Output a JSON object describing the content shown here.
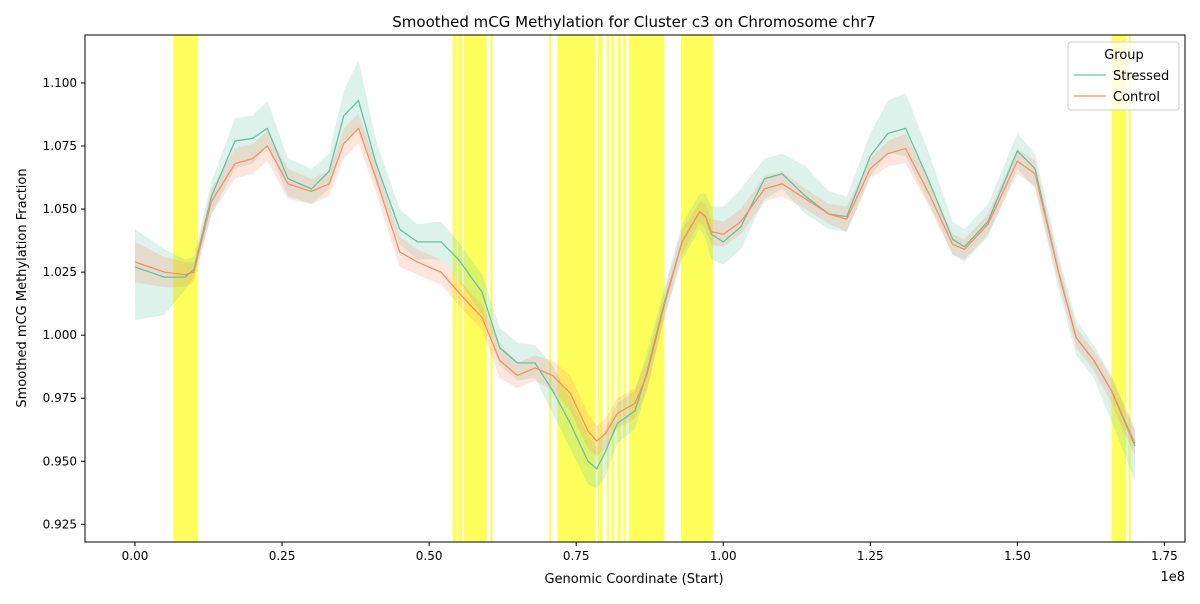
{
  "chart_data": {
    "type": "line",
    "title": "Smoothed mCG Methylation for Cluster c3 on Chromosome chr7",
    "xlabel": "Genomic Coordinate (Start)",
    "ylabel": "Smoothed mCG Methylation Fraction",
    "x_offset_label": "1e8",
    "xlim": [
      -0.085,
      1.785
    ],
    "ylim": [
      0.918,
      1.119
    ],
    "x_ticks": [
      0.0,
      0.25,
      0.5,
      0.75,
      1.0,
      1.25,
      1.5,
      1.75
    ],
    "x_tick_labels": [
      "0.00",
      "0.25",
      "0.50",
      "0.75",
      "1.00",
      "1.25",
      "1.50",
      "1.75"
    ],
    "y_ticks": [
      0.925,
      0.95,
      0.975,
      1.0,
      1.025,
      1.05,
      1.075,
      1.1
    ],
    "y_tick_labels": [
      "0.925",
      "0.950",
      "0.975",
      "1.000",
      "1.025",
      "1.050",
      "1.075",
      "1.100"
    ],
    "grid": false,
    "legend": {
      "title": "Group",
      "placement": "top-right"
    },
    "highlight_color": "#ffff33",
    "highlight_regions": [
      [
        0.065,
        0.107
      ],
      [
        0.54,
        0.547
      ],
      [
        0.549,
        0.556
      ],
      [
        0.559,
        0.598
      ],
      [
        0.604,
        0.608
      ],
      [
        0.704,
        0.708
      ],
      [
        0.718,
        0.783
      ],
      [
        0.787,
        0.795
      ],
      [
        0.802,
        0.806
      ],
      [
        0.81,
        0.815
      ],
      [
        0.82,
        0.826
      ],
      [
        0.83,
        0.835
      ],
      [
        0.84,
        0.9
      ],
      [
        0.928,
        0.983
      ],
      [
        1.66,
        1.685
      ],
      [
        1.689,
        1.693
      ]
    ],
    "x": [
      0.0,
      0.05,
      0.085,
      0.1,
      0.13,
      0.17,
      0.2,
      0.225,
      0.26,
      0.3,
      0.33,
      0.355,
      0.38,
      0.41,
      0.45,
      0.48,
      0.52,
      0.55,
      0.59,
      0.62,
      0.65,
      0.68,
      0.71,
      0.74,
      0.77,
      0.785,
      0.8,
      0.82,
      0.85,
      0.87,
      0.9,
      0.93,
      0.96,
      0.97,
      0.98,
      1.0,
      1.03,
      1.07,
      1.1,
      1.14,
      1.18,
      1.21,
      1.25,
      1.28,
      1.31,
      1.35,
      1.39,
      1.41,
      1.45,
      1.5,
      1.53,
      1.57,
      1.6,
      1.63,
      1.66,
      1.7
    ],
    "series": [
      {
        "name": "Stressed",
        "color": "#66c2a5",
        "values": [
          1.027,
          1.023,
          1.023,
          1.026,
          1.055,
          1.077,
          1.078,
          1.082,
          1.062,
          1.058,
          1.065,
          1.087,
          1.093,
          1.068,
          1.042,
          1.037,
          1.037,
          1.03,
          1.017,
          0.995,
          0.989,
          0.989,
          0.978,
          0.965,
          0.95,
          0.947,
          0.954,
          0.965,
          0.97,
          0.985,
          1.013,
          1.037,
          1.049,
          1.047,
          1.04,
          1.037,
          1.043,
          1.062,
          1.064,
          1.055,
          1.048,
          1.047,
          1.071,
          1.08,
          1.082,
          1.061,
          1.038,
          1.035,
          1.045,
          1.073,
          1.066,
          1.025,
          0.999,
          0.99,
          0.978,
          0.956
        ],
        "lower": [
          1.006,
          1.008,
          1.018,
          1.023,
          1.048,
          1.066,
          1.068,
          1.075,
          1.055,
          1.052,
          1.058,
          1.077,
          1.082,
          1.06,
          1.036,
          1.03,
          1.03,
          1.022,
          1.008,
          0.988,
          0.982,
          0.983,
          0.969,
          0.955,
          0.941,
          0.939,
          0.944,
          0.957,
          0.963,
          0.978,
          1.007,
          1.03,
          1.042,
          1.038,
          1.03,
          1.028,
          1.034,
          1.054,
          1.058,
          1.048,
          1.042,
          1.041,
          1.063,
          1.072,
          1.071,
          1.052,
          1.032,
          1.029,
          1.039,
          1.066,
          1.058,
          1.018,
          0.992,
          0.983,
          0.966,
          0.942
        ],
        "upper": [
          1.042,
          1.034,
          1.03,
          1.031,
          1.061,
          1.086,
          1.087,
          1.093,
          1.07,
          1.066,
          1.072,
          1.097,
          1.109,
          1.077,
          1.05,
          1.044,
          1.045,
          1.037,
          1.024,
          1.003,
          0.997,
          0.996,
          0.988,
          0.975,
          0.96,
          0.956,
          0.963,
          0.973,
          0.978,
          0.993,
          1.019,
          1.044,
          1.056,
          1.056,
          1.051,
          1.051,
          1.058,
          1.07,
          1.072,
          1.067,
          1.057,
          1.055,
          1.08,
          1.093,
          1.096,
          1.072,
          1.045,
          1.042,
          1.052,
          1.08,
          1.072,
          1.032,
          1.006,
          0.996,
          0.984,
          0.963
        ]
      },
      {
        "name": "Control",
        "color": "#fc8d62",
        "values": [
          1.029,
          1.025,
          1.024,
          1.025,
          1.053,
          1.068,
          1.07,
          1.075,
          1.06,
          1.057,
          1.06,
          1.076,
          1.082,
          1.062,
          1.033,
          1.029,
          1.025,
          1.017,
          1.007,
          0.99,
          0.984,
          0.987,
          0.984,
          0.977,
          0.962,
          0.958,
          0.961,
          0.969,
          0.973,
          0.984,
          1.012,
          1.037,
          1.049,
          1.047,
          1.041,
          1.04,
          1.045,
          1.058,
          1.06,
          1.054,
          1.048,
          1.046,
          1.066,
          1.072,
          1.074,
          1.056,
          1.036,
          1.034,
          1.044,
          1.069,
          1.064,
          1.025,
          0.999,
          0.99,
          0.978,
          0.957
        ],
        "lower": [
          1.021,
          1.019,
          1.019,
          1.021,
          1.048,
          1.062,
          1.064,
          1.069,
          1.054,
          1.052,
          1.055,
          1.07,
          1.076,
          1.056,
          1.027,
          1.024,
          1.02,
          1.012,
          1.002,
          0.983,
          0.979,
          0.982,
          0.978,
          0.97,
          0.955,
          0.952,
          0.955,
          0.963,
          0.967,
          0.978,
          1.007,
          1.032,
          1.045,
          1.042,
          1.036,
          1.035,
          1.04,
          1.053,
          1.055,
          1.05,
          1.044,
          1.041,
          1.062,
          1.067,
          1.068,
          1.051,
          1.032,
          1.03,
          1.04,
          1.064,
          1.059,
          1.021,
          0.995,
          0.986,
          0.973,
          0.952
        ],
        "upper": [
          1.037,
          1.031,
          1.029,
          1.029,
          1.058,
          1.074,
          1.076,
          1.081,
          1.066,
          1.062,
          1.065,
          1.082,
          1.088,
          1.068,
          1.039,
          1.034,
          1.03,
          1.022,
          1.012,
          0.997,
          0.989,
          0.992,
          0.99,
          0.984,
          0.969,
          0.964,
          0.967,
          0.975,
          0.979,
          0.99,
          1.017,
          1.042,
          1.053,
          1.052,
          1.046,
          1.045,
          1.05,
          1.063,
          1.065,
          1.058,
          1.052,
          1.051,
          1.07,
          1.077,
          1.08,
          1.061,
          1.04,
          1.038,
          1.048,
          1.074,
          1.069,
          1.029,
          1.003,
          0.994,
          0.983,
          0.962
        ]
      }
    ]
  }
}
